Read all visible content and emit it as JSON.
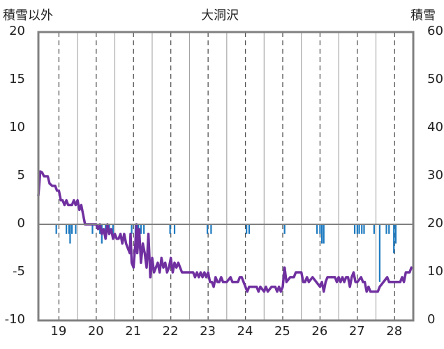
{
  "chart_data": {
    "type": "bar+line",
    "title": "大洞沢",
    "left_axis": {
      "label": "積雪以外",
      "ticks": [
        20,
        15,
        10,
        5,
        0,
        -5,
        -10
      ],
      "ylim": [
        -10,
        20
      ]
    },
    "right_axis": {
      "label": "積雪",
      "ticks": [
        60,
        50,
        40,
        30,
        20,
        10,
        0
      ],
      "ylim": [
        0,
        60
      ]
    },
    "x_axis": {
      "tick_labels": [
        "19",
        "20",
        "21",
        "22",
        "23",
        "24",
        "25",
        "26",
        "27",
        "28"
      ],
      "tick_positions": [
        19,
        20,
        21,
        22,
        23,
        24,
        25,
        26,
        27,
        28
      ],
      "xlim": [
        18.45,
        28.5
      ]
    },
    "grid": {
      "vertical_dashed": true,
      "minor_vertical_solid": true,
      "horizontal": false
    },
    "series": [
      {
        "kind": "bar",
        "axis": "left",
        "color": "#1f7bc0",
        "points": [
          [
            18.93,
            -1.0
          ],
          [
            19.2,
            -1.0
          ],
          [
            19.27,
            -1.0
          ],
          [
            19.3,
            -2.0
          ],
          [
            19.35,
            -1.0
          ],
          [
            19.45,
            -1.0
          ],
          [
            19.9,
            -1.0
          ],
          [
            20.1,
            -1.0
          ],
          [
            20.15,
            -2.0
          ],
          [
            20.25,
            -1.0
          ],
          [
            20.35,
            -1.0
          ],
          [
            20.45,
            -1.0
          ],
          [
            20.95,
            -1.0
          ],
          [
            21.05,
            -2.0
          ],
          [
            21.13,
            -1.0
          ],
          [
            21.2,
            -1.0
          ],
          [
            21.28,
            -1.0
          ],
          [
            21.98,
            -1.0
          ],
          [
            22.1,
            -1.0
          ],
          [
            22.98,
            -1.0
          ],
          [
            23.08,
            -1.0
          ],
          [
            24.03,
            -1.0
          ],
          [
            24.1,
            -1.0
          ],
          [
            25.05,
            -1.0
          ],
          [
            25.92,
            -1.0
          ],
          [
            26.0,
            -1.0
          ],
          [
            26.05,
            -2.0
          ],
          [
            26.1,
            -2.0
          ],
          [
            26.93,
            -1.0
          ],
          [
            27.0,
            -1.0
          ],
          [
            27.05,
            -1.0
          ],
          [
            27.12,
            -1.0
          ],
          [
            27.18,
            -1.0
          ],
          [
            27.45,
            -1.0
          ],
          [
            27.6,
            -6.0
          ],
          [
            27.78,
            -1.0
          ],
          [
            27.85,
            -1.0
          ],
          [
            27.98,
            -3.0
          ],
          [
            28.03,
            -2.0
          ]
        ]
      },
      {
        "kind": "line",
        "axis": "right",
        "color": "#7030a0",
        "points": [
          [
            18.45,
            26
          ],
          [
            18.5,
            31
          ],
          [
            18.55,
            30.8
          ],
          [
            18.6,
            30
          ],
          [
            18.7,
            30
          ],
          [
            18.75,
            28.5
          ],
          [
            18.82,
            28
          ],
          [
            18.9,
            28
          ],
          [
            18.95,
            27
          ],
          [
            19.0,
            27
          ],
          [
            19.05,
            25
          ],
          [
            19.1,
            25
          ],
          [
            19.15,
            24
          ],
          [
            19.2,
            25
          ],
          [
            19.25,
            24
          ],
          [
            19.3,
            24
          ],
          [
            19.35,
            24
          ],
          [
            19.4,
            25
          ],
          [
            19.45,
            24
          ],
          [
            19.5,
            25
          ],
          [
            19.55,
            23
          ],
          [
            19.6,
            24
          ],
          [
            19.65,
            22
          ],
          [
            19.7,
            20
          ],
          [
            19.8,
            20
          ],
          [
            19.9,
            20
          ],
          [
            20.0,
            20
          ],
          [
            20.05,
            19
          ],
          [
            20.1,
            20
          ],
          [
            20.15,
            18
          ],
          [
            20.2,
            19
          ],
          [
            20.25,
            17
          ],
          [
            20.3,
            20
          ],
          [
            20.35,
            18
          ],
          [
            20.4,
            19
          ],
          [
            20.45,
            17
          ],
          [
            20.5,
            18
          ],
          [
            20.55,
            17
          ],
          [
            20.6,
            17
          ],
          [
            20.65,
            18
          ],
          [
            20.7,
            16
          ],
          [
            20.75,
            18
          ],
          [
            20.8,
            16
          ],
          [
            20.85,
            15
          ],
          [
            20.9,
            14
          ],
          [
            20.92,
            18
          ],
          [
            20.95,
            12
          ],
          [
            21.0,
            11
          ],
          [
            21.05,
            16
          ],
          [
            21.08,
            20
          ],
          [
            21.1,
            14
          ],
          [
            21.15,
            19
          ],
          [
            21.2,
            12
          ],
          [
            21.25,
            16
          ],
          [
            21.3,
            14
          ],
          [
            21.35,
            11
          ],
          [
            21.4,
            18
          ],
          [
            21.45,
            9
          ],
          [
            21.5,
            13
          ],
          [
            21.55,
            10
          ],
          [
            21.6,
            11
          ],
          [
            21.65,
            12
          ],
          [
            21.7,
            10
          ],
          [
            21.75,
            13
          ],
          [
            21.8,
            11
          ],
          [
            21.85,
            12
          ],
          [
            21.9,
            10
          ],
          [
            21.95,
            11
          ],
          [
            22.0,
            13
          ],
          [
            22.05,
            10
          ],
          [
            22.1,
            12
          ],
          [
            22.15,
            11
          ],
          [
            22.2,
            12
          ],
          [
            22.25,
            11
          ],
          [
            22.3,
            10
          ],
          [
            22.5,
            10
          ],
          [
            22.6,
            10
          ],
          [
            22.65,
            9
          ],
          [
            22.7,
            10
          ],
          [
            22.75,
            9
          ],
          [
            22.8,
            10
          ],
          [
            22.85,
            9
          ],
          [
            22.9,
            10
          ],
          [
            22.95,
            9
          ],
          [
            23.0,
            10
          ],
          [
            23.05,
            8
          ],
          [
            23.1,
            8
          ],
          [
            23.15,
            7
          ],
          [
            23.2,
            9
          ],
          [
            23.25,
            8
          ],
          [
            23.3,
            8
          ],
          [
            23.35,
            9
          ],
          [
            23.4,
            8
          ],
          [
            23.5,
            8
          ],
          [
            23.6,
            9
          ],
          [
            23.65,
            8
          ],
          [
            23.7,
            8
          ],
          [
            23.8,
            8
          ],
          [
            23.85,
            9
          ],
          [
            23.9,
            9
          ],
          [
            23.95,
            8
          ],
          [
            24.0,
            7
          ],
          [
            24.05,
            6
          ],
          [
            24.1,
            7
          ],
          [
            24.2,
            7
          ],
          [
            24.3,
            7
          ],
          [
            24.35,
            6
          ],
          [
            24.4,
            7
          ],
          [
            24.5,
            6
          ],
          [
            24.55,
            7
          ],
          [
            24.6,
            6
          ],
          [
            24.7,
            7
          ],
          [
            24.8,
            7
          ],
          [
            24.85,
            6
          ],
          [
            24.9,
            7
          ],
          [
            24.95,
            6
          ],
          [
            25.0,
            7
          ],
          [
            25.05,
            11
          ],
          [
            25.1,
            8
          ],
          [
            25.2,
            9
          ],
          [
            25.3,
            9
          ],
          [
            25.35,
            10
          ],
          [
            25.5,
            10
          ],
          [
            25.55,
            8
          ],
          [
            25.6,
            8
          ],
          [
            25.65,
            9
          ],
          [
            25.7,
            8
          ],
          [
            25.8,
            9
          ],
          [
            25.9,
            8
          ],
          [
            26.0,
            7
          ],
          [
            26.05,
            8
          ],
          [
            26.1,
            6
          ],
          [
            26.15,
            8
          ],
          [
            26.2,
            9
          ],
          [
            26.3,
            9
          ],
          [
            26.4,
            9
          ],
          [
            26.45,
            8
          ],
          [
            26.5,
            9
          ],
          [
            26.55,
            8
          ],
          [
            26.6,
            9
          ],
          [
            26.65,
            8
          ],
          [
            26.7,
            9
          ],
          [
            26.75,
            9
          ],
          [
            26.8,
            7
          ],
          [
            26.85,
            9
          ],
          [
            26.9,
            10
          ],
          [
            26.95,
            8
          ],
          [
            27.0,
            8
          ],
          [
            27.1,
            9
          ],
          [
            27.15,
            8
          ],
          [
            27.2,
            8
          ],
          [
            27.25,
            6
          ],
          [
            27.3,
            7
          ],
          [
            27.35,
            6
          ],
          [
            27.4,
            6
          ],
          [
            27.5,
            6
          ],
          [
            27.55,
            6
          ],
          [
            27.6,
            7
          ],
          [
            27.7,
            8
          ],
          [
            27.8,
            9
          ],
          [
            27.85,
            8
          ],
          [
            27.9,
            8
          ],
          [
            28.0,
            8
          ],
          [
            28.1,
            8
          ],
          [
            28.15,
            8
          ],
          [
            28.2,
            9
          ],
          [
            28.25,
            8
          ],
          [
            28.3,
            10
          ],
          [
            28.4,
            10
          ],
          [
            28.45,
            11
          ]
        ]
      }
    ]
  }
}
